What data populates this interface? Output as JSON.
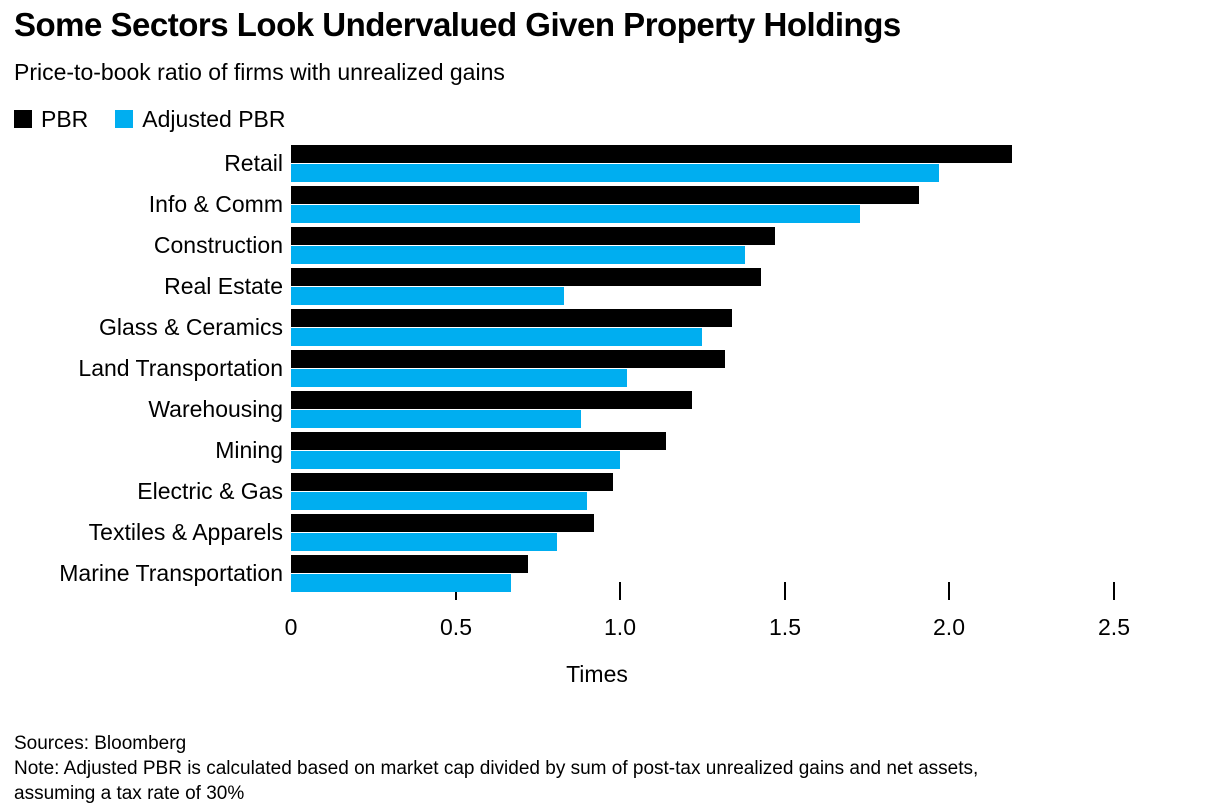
{
  "title": "Some Sectors Look Undervalued Given Property Holdings",
  "subtitle": "Price-to-book ratio of firms with unrealized gains",
  "colors": {
    "pbr": "#000000",
    "adjusted_pbr": "#00AEF0",
    "text": "#000000",
    "background": "#ffffff"
  },
  "legend": [
    {
      "label": "PBR",
      "color": "#000000"
    },
    {
      "label": "Adjusted PBR",
      "color": "#00AEF0"
    }
  ],
  "chart_data": {
    "type": "bar",
    "orientation": "horizontal",
    "title": "Some Sectors Look Undervalued Given Property Holdings",
    "subtitle": "Price-to-book ratio of firms with unrealized gains",
    "categories": [
      "Retail",
      "Info & Comm",
      "Construction",
      "Real Estate",
      "Glass & Ceramics",
      "Land Transportation",
      "Warehousing",
      "Mining",
      "Electric & Gas",
      "Textiles & Apparels",
      "Marine Transportation"
    ],
    "series": [
      {
        "name": "PBR",
        "color": "#000000",
        "values": [
          2.19,
          1.91,
          1.47,
          1.43,
          1.34,
          1.32,
          1.22,
          1.14,
          0.98,
          0.92,
          0.72
        ]
      },
      {
        "name": "Adjusted PBR",
        "color": "#00AEF0",
        "values": [
          1.97,
          1.73,
          1.38,
          0.83,
          1.25,
          1.02,
          0.88,
          1.0,
          0.9,
          0.81,
          0.67
        ]
      }
    ],
    "xlabel": "Times",
    "ylabel": "",
    "xlim": [
      0,
      2.7
    ],
    "x_ticks": [
      0.5,
      1.0,
      1.5,
      2.0,
      2.5
    ],
    "x_tick_labels": [
      "0",
      "0.5",
      "1.0",
      "1.5",
      "2.0",
      "2.5"
    ],
    "x_tick_label_values": [
      0,
      0.5,
      1.0,
      1.5,
      2.0,
      2.5
    ],
    "grid": false,
    "legend_position": "top-left"
  },
  "footer": {
    "sources": "Sources: Bloomberg",
    "note": "Note: Adjusted PBR is calculated based on market cap divided by sum of post-tax unrealized gains and net assets, assuming a tax rate of 30%"
  }
}
